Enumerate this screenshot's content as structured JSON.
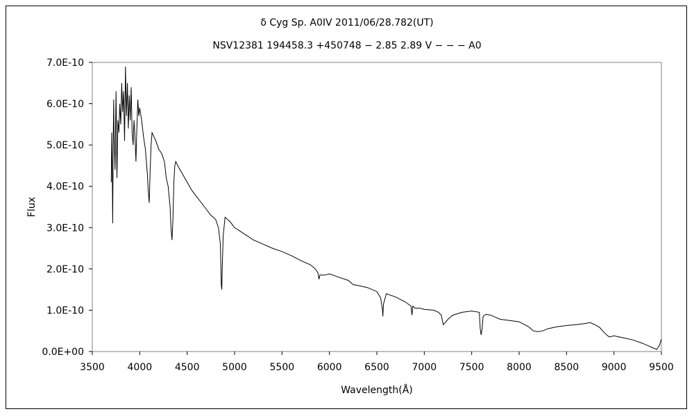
{
  "chart_data": {
    "type": "line",
    "title_line1": "δ Cyg   Sp. A0IV   2011/06/28.782(UT)",
    "title_line2": "NSV12381 194458.3 +450748 − 2.85 2.89 V − − − A0",
    "xlabel": "Wavelength(Å)",
    "ylabel": "Flux",
    "xlim": [
      3500,
      9500
    ],
    "ylim": [
      0,
      7e-10
    ],
    "xticks": [
      "3500",
      "4000",
      "4500",
      "5000",
      "5500",
      "6000",
      "6500",
      "7000",
      "7500",
      "8000",
      "8500",
      "9000",
      "9500"
    ],
    "yticks": [
      "0.0E+00",
      "1.0E-10",
      "2.0E-10",
      "3.0E-10",
      "4.0E-10",
      "5.0E-10",
      "6.0E-10",
      "7.0E-10"
    ],
    "grid": false,
    "series": [
      {
        "color": "#000000",
        "x": [
          3700,
          3705,
          3710,
          3715,
          3720,
          3725,
          3730,
          3740,
          3750,
          3760,
          3770,
          3780,
          3790,
          3800,
          3810,
          3820,
          3830,
          3840,
          3850,
          3860,
          3870,
          3880,
          3890,
          3900,
          3910,
          3920,
          3930,
          3940,
          3950,
          3960,
          3970,
          3980,
          3990,
          4000,
          4020,
          4040,
          4060,
          4080,
          4090,
          4100,
          4110,
          4120,
          4130,
          4150,
          4170,
          4200,
          4230,
          4260,
          4280,
          4300,
          4320,
          4330,
          4340,
          4350,
          4360,
          4370,
          4380,
          4400,
          4450,
          4500,
          4550,
          4600,
          4650,
          4700,
          4750,
          4800,
          4830,
          4850,
          4860,
          4865,
          4870,
          4880,
          4900,
          4950,
          5000,
          5100,
          5200,
          5300,
          5400,
          5500,
          5600,
          5700,
          5800,
          5850,
          5880,
          5890,
          5900,
          5950,
          6000,
          6100,
          6200,
          6250,
          6300,
          6400,
          6500,
          6540,
          6560,
          6563,
          6570,
          6600,
          6700,
          6800,
          6860,
          6870,
          6880,
          6900,
          6950,
          7000,
          7100,
          7150,
          7180,
          7200,
          7220,
          7250,
          7300,
          7400,
          7500,
          7580,
          7590,
          7600,
          7610,
          7620,
          7650,
          7700,
          7800,
          7900,
          8000,
          8100,
          8150,
          8200,
          8250,
          8300,
          8400,
          8500,
          8600,
          8700,
          8750,
          8800,
          8850,
          8900,
          8950,
          9000,
          9100,
          9200,
          9300,
          9350,
          9400,
          9450,
          9480,
          9500
        ],
        "y": [
          4.1e-10,
          5.3e-10,
          4.5e-10,
          3.1e-10,
          5e-10,
          6.1e-10,
          5.2e-10,
          4.4e-10,
          6.3e-10,
          4.2e-10,
          5.6e-10,
          5.3e-10,
          6e-10,
          5.5e-10,
          6.5e-10,
          5.8e-10,
          6.3e-10,
          5.1e-10,
          6.9e-10,
          5.7e-10,
          6.5e-10,
          5.4e-10,
          6.2e-10,
          5.6e-10,
          6.4e-10,
          5.3e-10,
          5e-10,
          5.6e-10,
          5.2e-10,
          4.6e-10,
          5.4e-10,
          6.1e-10,
          5.7e-10,
          5.9e-10,
          5.6e-10,
          5.2e-10,
          4.9e-10,
          4.3e-10,
          3.9e-10,
          3.6e-10,
          4.4e-10,
          5e-10,
          5.3e-10,
          5.2e-10,
          5.1e-10,
          4.9e-10,
          4.8e-10,
          4.6e-10,
          4.2e-10,
          4e-10,
          3.5e-10,
          3e-10,
          2.7e-10,
          3.2e-10,
          4.1e-10,
          4.5e-10,
          4.6e-10,
          4.5e-10,
          4.3e-10,
          4.1e-10,
          3.9e-10,
          3.75e-10,
          3.6e-10,
          3.45e-10,
          3.3e-10,
          3.2e-10,
          3e-10,
          2.6e-10,
          1.6e-10,
          1.5e-10,
          2e-10,
          2.8e-10,
          3.25e-10,
          3.15e-10,
          3e-10,
          2.85e-10,
          2.7e-10,
          2.6e-10,
          2.5e-10,
          2.42e-10,
          2.32e-10,
          2.2e-10,
          2.1e-10,
          2e-10,
          1.9e-10,
          1.75e-10,
          1.85e-10,
          1.85e-10,
          1.88e-10,
          1.8e-10,
          1.72e-10,
          1.62e-10,
          1.6e-10,
          1.55e-10,
          1.45e-10,
          1.3e-10,
          1e-10,
          8.5e-11,
          1.15e-10,
          1.4e-10,
          1.32e-10,
          1.2e-10,
          1.1e-10,
          8.8e-11,
          1.1e-10,
          1.05e-10,
          1.05e-10,
          1.02e-10,
          1e-10,
          9.5e-11,
          8.8e-11,
          6.5e-11,
          7e-11,
          7.8e-11,
          8.8e-11,
          9.5e-11,
          9.8e-11,
          9.5e-11,
          5.5e-11,
          4e-11,
          5.5e-11,
          8.5e-11,
          9e-11,
          8.8e-11,
          7.8e-11,
          7.5e-11,
          7.2e-11,
          6e-11,
          5e-11,
          4.8e-11,
          5e-11,
          5.5e-11,
          6e-11,
          6.3e-11,
          6.5e-11,
          6.8e-11,
          7e-11,
          6.5e-11,
          5.8e-11,
          4.5e-11,
          3.5e-11,
          3.8e-11,
          3.3e-11,
          2.8e-11,
          2e-11,
          1.5e-11,
          1e-11,
          5e-12,
          1.5e-11,
          3e-11
        ]
      }
    ]
  }
}
